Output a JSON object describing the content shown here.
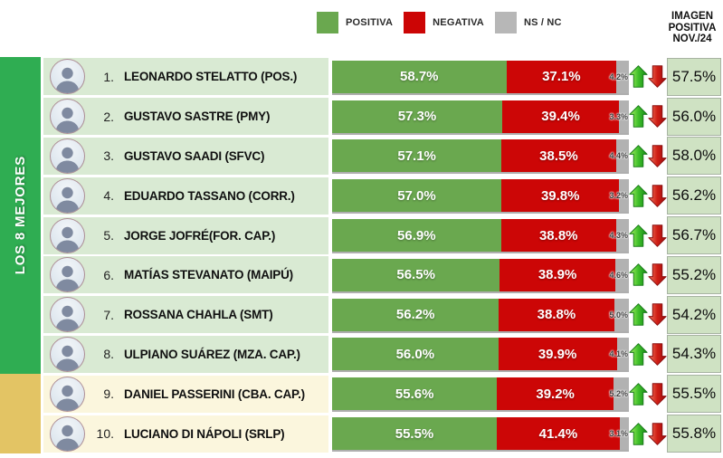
{
  "legend": {
    "items": [
      {
        "label": "POSITIVA",
        "color": "#6aa84f"
      },
      {
        "label": "NEGATIVA",
        "color": "#cc0505"
      },
      {
        "label": "NS / NC",
        "color": "#b7b7b7"
      }
    ]
  },
  "right_header": {
    "line1": "IMAGEN",
    "line2": "POSITIVA",
    "line3": "NOV./24"
  },
  "sidebar": {
    "label": "LOS 8 MEJORES",
    "top_color": "#2fad52",
    "bottom_color": "#e3c464"
  },
  "colors": {
    "bar_positive": "#6aa84f",
    "bar_negative": "#cc0606",
    "bar_nsnc": "#b2b2b2",
    "row_bg_top8": "#d9ead3",
    "row_bg_rest": "#fbf6dd",
    "prev_cell_bg": "#cfe2c3"
  },
  "rows": [
    {
      "rank": "1.",
      "name": "LEONARDO STELATTO (POS.)",
      "positiva": 58.7,
      "negativa": 37.1,
      "nsnc": 4.2,
      "trend": "up",
      "prev": 57.5,
      "group": "top8"
    },
    {
      "rank": "2.",
      "name": "GUSTAVO SASTRE (PMY)",
      "positiva": 57.3,
      "negativa": 39.4,
      "nsnc": 3.3,
      "trend": "up",
      "prev": 56.0,
      "group": "top8"
    },
    {
      "rank": "3.",
      "name": "GUSTAVO SAADI (SFVC)",
      "positiva": 57.1,
      "negativa": 38.5,
      "nsnc": 4.4,
      "trend": "down",
      "prev": 58.0,
      "group": "top8"
    },
    {
      "rank": "4.",
      "name": "EDUARDO TASSANO (CORR.)",
      "positiva": 57.0,
      "negativa": 39.8,
      "nsnc": 3.2,
      "trend": "up",
      "prev": 56.2,
      "group": "top8"
    },
    {
      "rank": "5.",
      "name": "JORGE JOFRÉ(FOR. CAP.)",
      "positiva": 56.9,
      "negativa": 38.8,
      "nsnc": 4.3,
      "trend": "up",
      "prev": 56.7,
      "group": "top8"
    },
    {
      "rank": "6.",
      "name": "MATÍAS STEVANATO (MAIPÚ)",
      "positiva": 56.5,
      "negativa": 38.9,
      "nsnc": 4.6,
      "trend": "up",
      "prev": 55.2,
      "group": "top8"
    },
    {
      "rank": "7.",
      "name": "ROSSANA CHAHLA (SMT)",
      "positiva": 56.2,
      "negativa": 38.8,
      "nsnc": 5.0,
      "trend": "up",
      "prev": 54.2,
      "group": "top8"
    },
    {
      "rank": "8.",
      "name": "ULPIANO SUÁREZ (MZA. CAP.)",
      "positiva": 56.0,
      "negativa": 39.9,
      "nsnc": 4.1,
      "trend": "up",
      "prev": 54.3,
      "group": "top8"
    },
    {
      "rank": "9.",
      "name": "DANIEL PASSERINI (CBA. CAP.)",
      "positiva": 55.6,
      "negativa": 39.2,
      "nsnc": 5.2,
      "trend": "up",
      "prev": 55.5,
      "group": "rest"
    },
    {
      "rank": "10.",
      "name": "LUCIANO DI NÁPOLI (SRLP)",
      "positiva": 55.5,
      "negativa": 41.4,
      "nsnc": 3.1,
      "trend": "down",
      "prev": 55.8,
      "group": "rest"
    }
  ],
  "chart_data": {
    "type": "bar",
    "stacked": true,
    "orientation": "horizontal",
    "unit": "%",
    "title": "",
    "group_label": "LOS 8 MEJORES",
    "previous_column_label": "IMAGEN POSITIVA NOV./24",
    "legend_position": "top",
    "xlim": [
      0,
      100
    ],
    "categories": [
      "LEONARDO STELATTO (POS.)",
      "GUSTAVO SASTRE (PMY)",
      "GUSTAVO SAADI (SFVC)",
      "EDUARDO TASSANO (CORR.)",
      "JORGE JOFRÉ(FOR. CAP.)",
      "MATÍAS STEVANATO (MAIPÚ)",
      "ROSSANA CHAHLA (SMT)",
      "ULPIANO SUÁREZ (MZA. CAP.)",
      "DANIEL PASSERINI (CBA. CAP.)",
      "LUCIANO DI NÁPOLI (SRLP)"
    ],
    "series": [
      {
        "name": "POSITIVA",
        "values": [
          58.7,
          57.3,
          57.1,
          57.0,
          56.9,
          56.5,
          56.2,
          56.0,
          55.6,
          55.5
        ]
      },
      {
        "name": "NEGATIVA",
        "values": [
          37.1,
          39.4,
          38.5,
          39.8,
          38.8,
          38.9,
          38.8,
          39.9,
          39.2,
          41.4
        ]
      },
      {
        "name": "NS / NC",
        "values": [
          4.2,
          3.3,
          4.4,
          3.2,
          4.3,
          4.6,
          5.0,
          4.1,
          5.2,
          3.1
        ]
      }
    ],
    "imagen_positiva_nov24": [
      57.5,
      56.0,
      58.0,
      56.2,
      56.7,
      55.2,
      54.2,
      54.3,
      55.5,
      55.8
    ],
    "trend_vs_previous": [
      "up",
      "up",
      "down",
      "up",
      "up",
      "up",
      "up",
      "up",
      "up",
      "down"
    ]
  }
}
